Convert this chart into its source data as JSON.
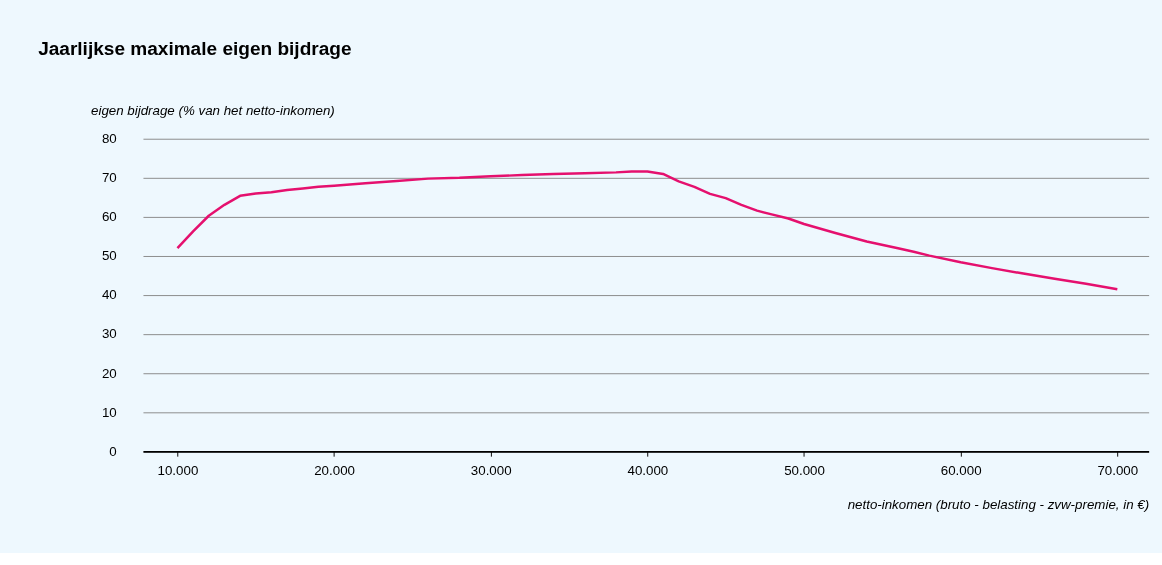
{
  "chart_data": {
    "type": "line",
    "title": "Jaarlijkse maximale eigen bijdrage",
    "ylabel": "eigen bijdrage (% van het netto-inkomen)",
    "xlabel": "netto-inkomen (bruto - belasting - zvw-premie, in €)",
    "x": [
      10000,
      11000,
      12000,
      13000,
      14000,
      15000,
      16000,
      17000,
      18000,
      19000,
      20000,
      22000,
      24000,
      26000,
      28000,
      30000,
      32000,
      34000,
      36000,
      38000,
      39000,
      40000,
      41000,
      42000,
      43000,
      44000,
      45000,
      46000,
      47000,
      48000,
      49000,
      50000,
      52000,
      54000,
      56000,
      57000,
      58000,
      60000,
      62000,
      64000,
      66000,
      68000,
      70000
    ],
    "series": [
      {
        "color": "#e5106e",
        "values": [
          52,
          56.3,
          60.3,
          63.1,
          65.4,
          66,
          66.3,
          66.9,
          67.3,
          67.7,
          68,
          68.6,
          69.2,
          69.8,
          70,
          70.4,
          70.7,
          71,
          71.2,
          71.4,
          71.6,
          71.6,
          71,
          69.1,
          67.7,
          65.9,
          64.8,
          63.1,
          61.6,
          60.6,
          59.6,
          58.2,
          55.9,
          53.7,
          52,
          51.1,
          50.1,
          48.4,
          46.9,
          45.5,
          44.2,
          42.9,
          41.5
        ]
      }
    ],
    "xlim": [
      7800,
      72000
    ],
    "xticks": [
      {
        "value": 10000,
        "label": "10.000"
      },
      {
        "value": 20000,
        "label": "20.000"
      },
      {
        "value": 30000,
        "label": "30.000"
      },
      {
        "value": 40000,
        "label": "40.000"
      },
      {
        "value": 50000,
        "label": "50.000"
      },
      {
        "value": 60000,
        "label": "60.000"
      },
      {
        "value": 70000,
        "label": "70.000"
      }
    ],
    "ylim": [
      0,
      80
    ],
    "yticks": [
      0,
      10,
      20,
      30,
      40,
      50,
      60,
      70,
      80
    ],
    "grid": "y",
    "legend": false,
    "marker": "none",
    "line_style": "solid"
  }
}
